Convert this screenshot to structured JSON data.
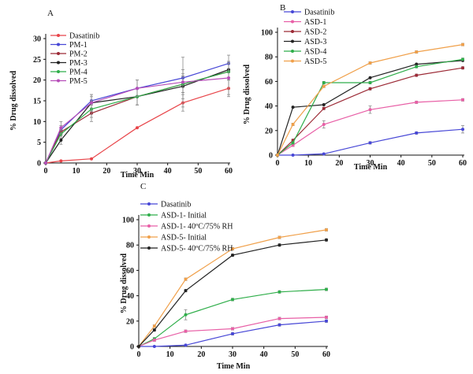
{
  "chart_data": [
    {
      "type": "line",
      "panel_label": "A",
      "title": "",
      "xlabel": "Time Min",
      "ylabel": "% Drug dissolved",
      "xlim": [
        0,
        60
      ],
      "ylim": [
        0,
        30
      ],
      "xticks": [
        0,
        10,
        20,
        30,
        40,
        50,
        60
      ],
      "yticks": [
        0,
        5,
        10,
        15,
        20,
        25,
        30
      ],
      "x": [
        0,
        5,
        15,
        30,
        45,
        60
      ],
      "legend_position": "top-left",
      "series": [
        {
          "name": "Dasatinib",
          "color": "#e8454a",
          "values": [
            0,
            0.5,
            1,
            8.5,
            14.5,
            18
          ],
          "errors": [
            0,
            0,
            0,
            0,
            2,
            2
          ]
        },
        {
          "name": "PM-1",
          "color": "#4747d6",
          "values": [
            0,
            8,
            15,
            18,
            20.5,
            24
          ],
          "errors": [
            0,
            1,
            1,
            2,
            2,
            2
          ]
        },
        {
          "name": "PM-2",
          "color": "#9c2a36",
          "values": [
            0,
            7.5,
            12,
            16,
            19,
            22
          ],
          "errors": [
            0,
            1,
            2,
            2,
            2,
            2
          ]
        },
        {
          "name": "PM-3",
          "color": "#222222",
          "values": [
            0,
            5.5,
            14.5,
            16,
            18.5,
            22.5
          ],
          "errors": [
            0,
            1,
            2,
            2,
            3,
            2
          ]
        },
        {
          "name": "PM-4",
          "color": "#2fae4a",
          "values": [
            0,
            7,
            13,
            16,
            19,
            22
          ],
          "errors": [
            0,
            1,
            2,
            2,
            2,
            2
          ]
        },
        {
          "name": "PM-5",
          "color": "#b64db8",
          "values": [
            0,
            8.5,
            14.5,
            18,
            19.5,
            20.5
          ],
          "errors": [
            0,
            1.5,
            2,
            2,
            6,
            4
          ]
        }
      ]
    },
    {
      "type": "line",
      "panel_label": "B",
      "title": "",
      "xlabel": "Time Min",
      "ylabel": "% Drug dissolved",
      "xlim": [
        0,
        60
      ],
      "ylim": [
        0,
        100
      ],
      "xticks": [
        0,
        10,
        20,
        30,
        40,
        50,
        60
      ],
      "yticks": [
        0,
        20,
        40,
        60,
        80,
        100
      ],
      "x": [
        0,
        5,
        15,
        30,
        45,
        60
      ],
      "legend_position": "top-left",
      "series": [
        {
          "name": "Dasatinib",
          "color": "#4747d6",
          "values": [
            0,
            0,
            1,
            10,
            18,
            21
          ],
          "errors": [
            0,
            0,
            0,
            1,
            1,
            3
          ]
        },
        {
          "name": "ASD-1",
          "color": "#e85fa6",
          "values": [
            0,
            8,
            25,
            37,
            43,
            45
          ],
          "errors": [
            0,
            1,
            3,
            3,
            1,
            1
          ]
        },
        {
          "name": "ASD-2",
          "color": "#9c2a36",
          "values": [
            0,
            12,
            38,
            54,
            65,
            71
          ],
          "errors": [
            0,
            1,
            1,
            1,
            1,
            1
          ]
        },
        {
          "name": "ASD-3",
          "color": "#222222",
          "values": [
            0,
            39,
            41,
            63,
            74,
            77
          ],
          "errors": [
            0,
            0,
            0,
            0,
            0,
            0
          ]
        },
        {
          "name": "ASD-4",
          "color": "#2fae4a",
          "values": [
            0,
            10,
            59,
            59,
            72,
            78
          ],
          "errors": [
            0,
            1,
            1,
            1,
            1,
            1
          ]
        },
        {
          "name": "ASD-5",
          "color": "#f0a04a",
          "values": [
            0,
            25,
            56,
            75,
            84,
            90
          ],
          "errors": [
            0,
            1,
            1,
            1,
            1,
            1
          ]
        }
      ]
    },
    {
      "type": "line",
      "panel_label": "C",
      "title": "",
      "xlabel": "Time Min",
      "ylabel": "% Drug dissolved",
      "xlim": [
        0,
        60
      ],
      "ylim": [
        0,
        100
      ],
      "xticks": [
        0,
        10,
        20,
        30,
        40,
        50,
        60
      ],
      "yticks": [
        0,
        20,
        40,
        60,
        80,
        100
      ],
      "x": [
        0,
        5,
        15,
        30,
        45,
        60
      ],
      "legend_position": "top-left",
      "series": [
        {
          "name": "Dasatinib",
          "color": "#4747d6",
          "values": [
            0,
            0,
            1,
            10,
            17,
            20
          ],
          "errors": [
            0,
            0,
            0,
            1,
            1,
            1
          ]
        },
        {
          "name": "ASD-1- Initial",
          "color": "#2fae4a",
          "values": [
            0,
            6,
            25,
            37,
            43,
            45
          ],
          "errors": [
            0,
            1,
            4,
            1,
            1,
            1
          ]
        },
        {
          "name": "ASD-1- 40ºC/75% RH",
          "color": "#e85fa6",
          "values": [
            0,
            5,
            12,
            14,
            22,
            23
          ],
          "errors": [
            0,
            1,
            1,
            1,
            1,
            1
          ]
        },
        {
          "name": "ASD-5- Initial",
          "color": "#f0a04a",
          "values": [
            0,
            16,
            53,
            77,
            86,
            92
          ],
          "errors": [
            0,
            1,
            1,
            1,
            1,
            1
          ]
        },
        {
          "name": "ASD-5- 40ºC/75% RH",
          "color": "#222222",
          "values": [
            0,
            13,
            44,
            72,
            80,
            84
          ],
          "errors": [
            0,
            1,
            1,
            1,
            1,
            1
          ]
        }
      ]
    }
  ]
}
